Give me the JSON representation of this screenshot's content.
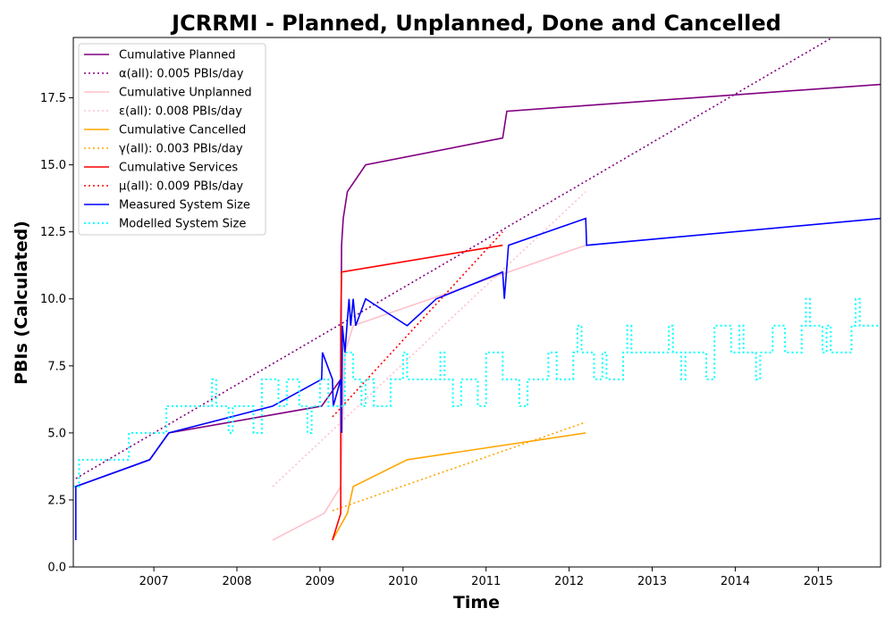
{
  "chart_data": {
    "type": "line",
    "title": "JCRRMI - Planned, Unplanned, Done  and Cancelled",
    "xlabel": "Time",
    "ylabel": "PBIs (Calculated)",
    "xlim": [
      2006.03,
      2015.75
    ],
    "ylim": [
      0,
      19.75
    ],
    "x_ticks": [
      2007,
      2008,
      2009,
      2010,
      2011,
      2012,
      2013,
      2014,
      2015
    ],
    "y_ticks": [
      0.0,
      2.5,
      5.0,
      7.5,
      10.0,
      12.5,
      15.0,
      17.5
    ],
    "grid": false,
    "legend_position": "top-left",
    "series": [
      {
        "name": "Cumulative Planned",
        "color": "#800080",
        "style": "solid",
        "points": [
          [
            2006.06,
            3.0
          ],
          [
            2006.95,
            4.0
          ],
          [
            2007.18,
            5.0
          ],
          [
            2009.02,
            6.0
          ],
          [
            2009.25,
            7.0
          ],
          [
            2009.26,
            12.0
          ],
          [
            2009.28,
            13.0
          ],
          [
            2009.33,
            14.0
          ],
          [
            2009.55,
            15.0
          ],
          [
            2011.2,
            16.0
          ],
          [
            2011.25,
            17.0
          ],
          [
            2015.75,
            18.0
          ]
        ]
      },
      {
        "name": "α(all): 0.005 PBIs/day",
        "color": "#800080",
        "style": "dotted",
        "points": [
          [
            2006.06,
            3.3
          ],
          [
            2015.75,
            20.8
          ]
        ]
      },
      {
        "name": "Cumulative Unplanned",
        "color": "#ffc0cb",
        "style": "solid",
        "points": [
          [
            2008.43,
            1.0
          ],
          [
            2009.05,
            2.0
          ],
          [
            2009.25,
            3.0
          ],
          [
            2009.3,
            8.0
          ],
          [
            2009.4,
            9.0
          ],
          [
            2012.2,
            12.0
          ]
        ]
      },
      {
        "name": "ε(all): 0.008 PBIs/day",
        "color": "#ffc0cb",
        "style": "dotted",
        "points": [
          [
            2008.43,
            3.0
          ],
          [
            2012.2,
            14.0
          ]
        ]
      },
      {
        "name": "Cumulative Cancelled",
        "color": "#ffa500",
        "style": "solid",
        "points": [
          [
            2009.15,
            1.0
          ],
          [
            2009.33,
            2.0
          ],
          [
            2009.4,
            3.0
          ],
          [
            2010.05,
            4.0
          ],
          [
            2012.2,
            5.0
          ]
        ]
      },
      {
        "name": "γ(all): 0.003 PBIs/day",
        "color": "#ffa500",
        "style": "dotted",
        "points": [
          [
            2009.15,
            2.1
          ],
          [
            2012.2,
            5.4
          ]
        ]
      },
      {
        "name": "Cumulative Services",
        "color": "#ff0000",
        "style": "solid",
        "points": [
          [
            2009.15,
            1.0
          ],
          [
            2009.25,
            2.0
          ],
          [
            2009.25,
            9.0
          ],
          [
            2009.26,
            11.0
          ],
          [
            2011.2,
            12.0
          ]
        ]
      },
      {
        "name": "μ(all): 0.009 PBIs/day",
        "color": "#ff0000",
        "style": "dotted",
        "points": [
          [
            2009.15,
            5.6
          ],
          [
            2011.2,
            12.5
          ]
        ]
      },
      {
        "name": "Measured System Size",
        "color": "#0000ff",
        "style": "solid",
        "points": [
          [
            2006.06,
            1.0
          ],
          [
            2006.06,
            3.0
          ],
          [
            2006.95,
            4.0
          ],
          [
            2007.18,
            5.0
          ],
          [
            2008.43,
            6.0
          ],
          [
            2009.02,
            7.0
          ],
          [
            2009.03,
            8.0
          ],
          [
            2009.15,
            7.0
          ],
          [
            2009.16,
            6.0
          ],
          [
            2009.25,
            7.0
          ],
          [
            2009.26,
            5.0
          ],
          [
            2009.27,
            9.0
          ],
          [
            2009.3,
            8.0
          ],
          [
            2009.35,
            10.0
          ],
          [
            2009.37,
            9.0
          ],
          [
            2009.4,
            10.0
          ],
          [
            2009.43,
            9.0
          ],
          [
            2009.55,
            10.0
          ],
          [
            2010.05,
            9.0
          ],
          [
            2010.4,
            10.0
          ],
          [
            2011.2,
            11.0
          ],
          [
            2011.22,
            10.0
          ],
          [
            2011.27,
            12.0
          ],
          [
            2012.2,
            13.0
          ],
          [
            2012.21,
            12.0
          ],
          [
            2015.75,
            13.0
          ]
        ]
      },
      {
        "name": "Modelled System Size",
        "color": "#00ffff",
        "style": "dotted",
        "stepped": true,
        "points": [
          [
            2006.03,
            3.0
          ],
          [
            2006.1,
            4.0
          ],
          [
            2006.7,
            5.0
          ],
          [
            2007.15,
            6.0
          ],
          [
            2007.7,
            7.0
          ],
          [
            2007.75,
            6.0
          ],
          [
            2007.9,
            5.0
          ],
          [
            2007.95,
            6.0
          ],
          [
            2008.2,
            5.0
          ],
          [
            2008.3,
            7.0
          ],
          [
            2008.5,
            6.0
          ],
          [
            2008.6,
            7.0
          ],
          [
            2008.75,
            6.0
          ],
          [
            2008.85,
            5.0
          ],
          [
            2008.9,
            6.0
          ],
          [
            2009.0,
            7.0
          ],
          [
            2009.1,
            6.0
          ],
          [
            2009.3,
            8.0
          ],
          [
            2009.4,
            7.0
          ],
          [
            2009.5,
            6.0
          ],
          [
            2009.55,
            7.0
          ],
          [
            2009.65,
            6.0
          ],
          [
            2009.85,
            7.0
          ],
          [
            2010.0,
            8.0
          ],
          [
            2010.05,
            7.0
          ],
          [
            2010.45,
            8.0
          ],
          [
            2010.5,
            7.0
          ],
          [
            2010.6,
            6.0
          ],
          [
            2010.7,
            7.0
          ],
          [
            2010.9,
            6.0
          ],
          [
            2011.0,
            8.0
          ],
          [
            2011.2,
            7.0
          ],
          [
            2011.4,
            6.0
          ],
          [
            2011.5,
            7.0
          ],
          [
            2011.75,
            8.0
          ],
          [
            2011.85,
            7.0
          ],
          [
            2012.05,
            8.0
          ],
          [
            2012.1,
            9.0
          ],
          [
            2012.15,
            8.0
          ],
          [
            2012.3,
            7.0
          ],
          [
            2012.4,
            8.0
          ],
          [
            2012.45,
            7.0
          ],
          [
            2012.65,
            8.0
          ],
          [
            2012.7,
            9.0
          ],
          [
            2012.75,
            8.0
          ],
          [
            2013.2,
            9.0
          ],
          [
            2013.25,
            8.0
          ],
          [
            2013.35,
            7.0
          ],
          [
            2013.4,
            8.0
          ],
          [
            2013.65,
            7.0
          ],
          [
            2013.75,
            9.0
          ],
          [
            2013.95,
            8.0
          ],
          [
            2014.05,
            9.0
          ],
          [
            2014.1,
            8.0
          ],
          [
            2014.25,
            7.0
          ],
          [
            2014.3,
            8.0
          ],
          [
            2014.45,
            9.0
          ],
          [
            2014.6,
            8.0
          ],
          [
            2014.8,
            9.0
          ],
          [
            2014.85,
            10.0
          ],
          [
            2014.9,
            9.0
          ],
          [
            2015.05,
            8.0
          ],
          [
            2015.1,
            9.0
          ],
          [
            2015.15,
            8.0
          ],
          [
            2015.4,
            9.0
          ],
          [
            2015.45,
            10.0
          ],
          [
            2015.5,
            9.0
          ],
          [
            2015.75,
            9.0
          ]
        ]
      }
    ]
  }
}
